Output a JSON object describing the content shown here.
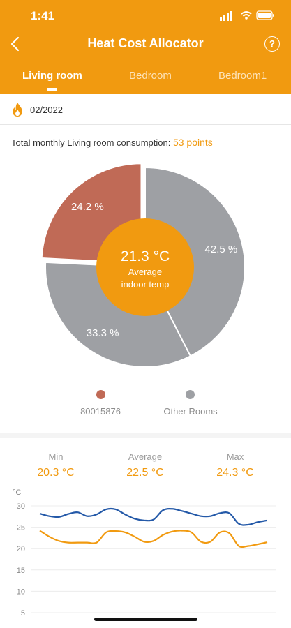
{
  "status_bar": {
    "time": "1:41"
  },
  "nav": {
    "title": "Heat Cost Allocator",
    "help_glyph": "?"
  },
  "tabs": [
    {
      "label": "Living room",
      "active": true
    },
    {
      "label": "Bedroom",
      "active": false
    },
    {
      "label": "Bedroom1",
      "active": false
    }
  ],
  "period": {
    "text": "02/2022"
  },
  "consumption": {
    "prefix": "Total monthly Living room consumption:",
    "value": "53 points"
  },
  "pie": {
    "center_temp": "21.3 °C",
    "center_line1": "Average",
    "center_line2": "indoor temp",
    "slices": [
      {
        "label": "42.5 %",
        "value": 42.5,
        "color": "#9ea0a4",
        "offset": 0
      },
      {
        "label": "33.3 %",
        "value": 33.3,
        "color": "#9ea0a4",
        "offset": 0
      },
      {
        "label": "24.2 %",
        "value": 24.2,
        "color": "#c06a56",
        "offset": 8
      }
    ]
  },
  "legend": [
    {
      "label": "80015876",
      "color": "#c06a56"
    },
    {
      "label": "Other Rooms",
      "color": "#9ea0a4"
    }
  ],
  "stats": {
    "min_label": "Min",
    "min_value": "20.3 °C",
    "avg_label": "Average",
    "avg_value": "22.5 °C",
    "max_label": "Max",
    "max_value": "24.3 °C"
  },
  "chart_data": {
    "type": "line",
    "ylabel": "°C",
    "y_ticks": [
      30,
      25,
      20,
      15,
      10,
      5
    ],
    "ylim": [
      5,
      30
    ],
    "grid": true,
    "series": [
      {
        "color": "#2459a8",
        "values": [
          28.2,
          27.6,
          27.4,
          28.1,
          28.5,
          27.6,
          28.0,
          29.2,
          29.2,
          28.0,
          27.0,
          26.6,
          26.8,
          29.0,
          29.3,
          28.8,
          28.2,
          27.6,
          27.6,
          28.3,
          28.3,
          25.8,
          25.6,
          26.2,
          26.6
        ]
      },
      {
        "color": "#f19a10",
        "values": [
          24.2,
          22.8,
          21.8,
          21.4,
          21.4,
          21.4,
          21.4,
          23.8,
          24.1,
          23.8,
          22.8,
          21.6,
          21.8,
          23.2,
          24.0,
          24.2,
          23.8,
          21.6,
          21.6,
          23.8,
          23.6,
          20.6,
          20.6,
          21.0,
          21.5
        ]
      }
    ]
  }
}
